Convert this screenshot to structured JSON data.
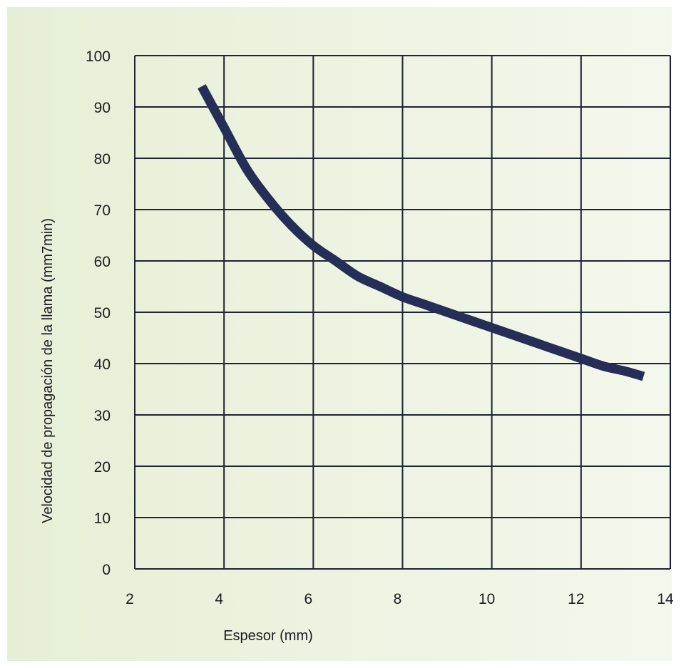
{
  "chart_data": {
    "type": "line",
    "xlabel": "Espesor (mm)",
    "ylabel": "Velocidad de propagación de la llama (mm7min)",
    "xlim": [
      2,
      14
    ],
    "ylim": [
      0,
      100
    ],
    "x_ticks": [
      2,
      4,
      6,
      8,
      10,
      12,
      14
    ],
    "y_ticks": [
      0,
      10,
      20,
      30,
      40,
      50,
      60,
      70,
      80,
      90,
      100
    ],
    "grid": true,
    "series": [
      {
        "color": "#262d57",
        "x": [
          3.5,
          4.0,
          4.5,
          5.0,
          5.5,
          6.0,
          6.5,
          7.0,
          7.5,
          8.0,
          8.5,
          9.0,
          9.5,
          10.0,
          10.5,
          11.0,
          11.5,
          12.0,
          12.5,
          13.0,
          13.4
        ],
        "y": [
          94,
          86,
          78,
          72,
          67,
          63,
          60,
          57,
          55,
          53,
          51.5,
          50,
          48.5,
          47,
          45.5,
          44,
          42.5,
          41,
          39.5,
          38.5,
          37.5
        ]
      }
    ]
  }
}
